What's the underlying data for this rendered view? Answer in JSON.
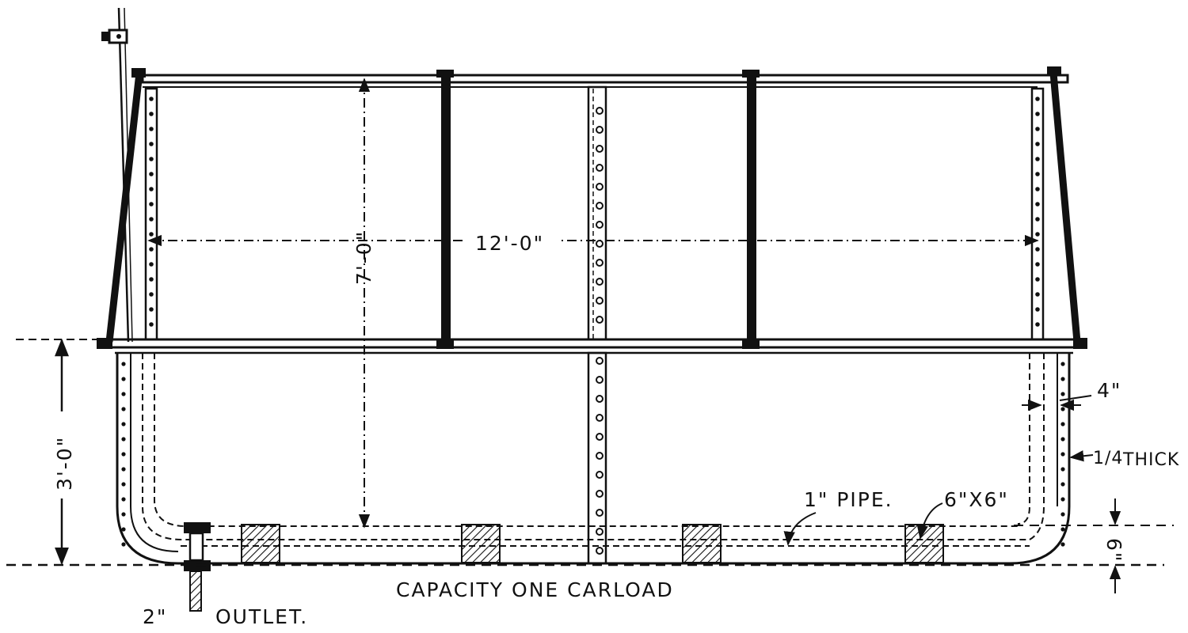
{
  "labels": {
    "height_top": "7'-0\"",
    "width": "12'-0\"",
    "height_bottom": "3'-0\"",
    "wall_gap": "4\"",
    "thickness_frac": "1/4",
    "thickness_word": "THICK",
    "pipe": "1\" PIPE.",
    "timber": "6\"X6\"",
    "bottom_gap": "6\"",
    "capacity": "CAPACITY  ONE  CARLOAD",
    "outlet_size": "2\"",
    "outlet": "OUTLET."
  },
  "colors": {
    "ink": "#111111",
    "paper": "#ffffff"
  }
}
